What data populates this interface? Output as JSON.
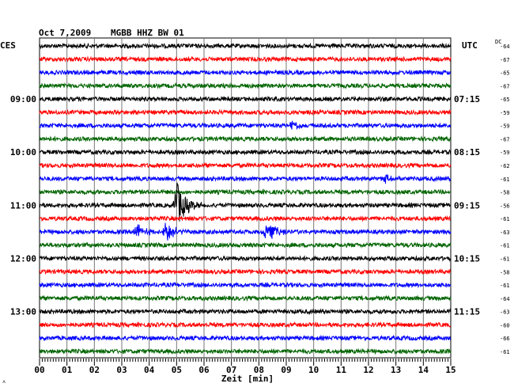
{
  "header": {
    "date": "Oct 7,2009",
    "station": "MGBB HHZ BW 01",
    "left_tz": "CES",
    "right_tz": "UTC",
    "dc_label": "DC"
  },
  "footer": {
    "corner_mark": "˄"
  },
  "chart_data": {
    "type": "line",
    "title": "Oct 7,2009   MGBB HHZ BW 01",
    "xlabel": "Zeit [min]",
    "ylabel": "",
    "xlim": [
      0,
      15
    ],
    "x_ticks": [
      "00",
      "01",
      "02",
      "03",
      "04",
      "05",
      "06",
      "07",
      "08",
      "09",
      "10",
      "11",
      "12",
      "13",
      "14",
      "15"
    ],
    "grid": true,
    "rows_per_hour": 4,
    "row_colors": [
      "#000000",
      "#ff0000",
      "#0000ff",
      "#006400"
    ],
    "left_time_labels": [
      {
        "row": 4,
        "label": "09:00"
      },
      {
        "row": 8,
        "label": "10:00"
      },
      {
        "row": 12,
        "label": "11:00"
      },
      {
        "row": 16,
        "label": "12:00"
      },
      {
        "row": 20,
        "label": "13:00"
      }
    ],
    "right_time_labels": [
      {
        "row": 4,
        "label": "07:15"
      },
      {
        "row": 8,
        "label": "08:15"
      },
      {
        "row": 12,
        "label": "09:15"
      },
      {
        "row": 16,
        "label": "10:15"
      },
      {
        "row": 20,
        "label": "11:15"
      }
    ],
    "dc_offsets": [
      -64,
      -67,
      -65,
      -67,
      -65,
      -59,
      -59,
      -67,
      -59,
      -62,
      -61,
      -58,
      -56,
      -61,
      -63,
      -61,
      -61,
      -58,
      -61,
      -64,
      -63,
      -60,
      -66,
      -61
    ],
    "events": [
      {
        "row": 12,
        "minute": 5.0,
        "amplitude": 1.0
      },
      {
        "row": 14,
        "minute": 3.5,
        "amplitude": 0.35
      },
      {
        "row": 14,
        "minute": 4.6,
        "amplitude": 0.45
      },
      {
        "row": 14,
        "minute": 8.3,
        "amplitude": 0.5
      },
      {
        "row": 6,
        "minute": 9.2,
        "amplitude": 0.2
      },
      {
        "row": 10,
        "minute": 12.6,
        "amplitude": 0.2
      }
    ]
  }
}
